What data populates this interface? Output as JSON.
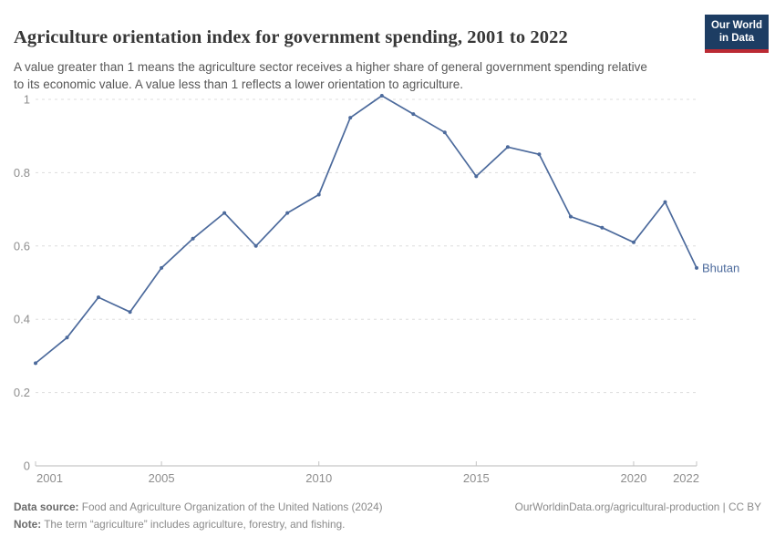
{
  "header": {
    "title": "Agriculture orientation index for government spending, 2001 to 2022",
    "subtitle": "A value greater than 1 means the agriculture sector receives a higher share of general government spending relative to its economic value. A value less than 1 reflects a lower orientation to agriculture.",
    "logo": {
      "line1": "Our World",
      "line2": "in Data"
    }
  },
  "colors": {
    "line": "#4c6a9c",
    "entity_label": "#4c6a9c",
    "grid": "#dddddd",
    "axis": "#b8b8b8",
    "tick": "#c4c4c4",
    "tick_label": "#8e8e8e",
    "logo_bg": "#1d3d63",
    "logo_stripe": "#bb2a33"
  },
  "chart_data": {
    "type": "line",
    "title": "Agriculture orientation index for government spending, 2001 to 2022",
    "entity_label": "Bhutan",
    "x": [
      2001,
      2002,
      2003,
      2004,
      2005,
      2006,
      2007,
      2008,
      2009,
      2010,
      2011,
      2012,
      2013,
      2014,
      2015,
      2016,
      2017,
      2018,
      2019,
      2020,
      2021,
      2022
    ],
    "series": [
      {
        "name": "Bhutan",
        "values": [
          0.28,
          0.35,
          0.46,
          0.42,
          0.54,
          0.62,
          0.69,
          0.6,
          0.69,
          0.74,
          0.95,
          1.01,
          0.96,
          0.91,
          0.79,
          0.87,
          0.85,
          0.68,
          0.65,
          0.61,
          0.72,
          0.54
        ]
      }
    ],
    "xlabel": "",
    "ylabel": "",
    "xlim": [
      2001,
      2022
    ],
    "ylim": [
      0,
      1
    ],
    "x_ticks": [
      2001,
      2005,
      2010,
      2015,
      2020,
      2022
    ],
    "x_tick_labels": [
      "2001",
      "2005",
      "2010",
      "2015",
      "2020",
      "2022"
    ],
    "y_ticks": [
      0,
      0.2,
      0.4,
      0.6,
      0.8,
      1
    ],
    "y_tick_labels": [
      "0",
      "0.2",
      "0.4",
      "0.6",
      "0.8",
      "1"
    ],
    "grid": "horizontal-dashed",
    "legend_position": "end-of-line-label"
  },
  "footer": {
    "datasource_label": "Data source:",
    "datasource_text": " Food and Agriculture Organization of the United Nations (2024)",
    "link_text": "OurWorldinData.org/agricultural-production | CC BY",
    "note_label": "Note:",
    "note_text": " The term “agriculture” includes agriculture, forestry, and fishing."
  }
}
